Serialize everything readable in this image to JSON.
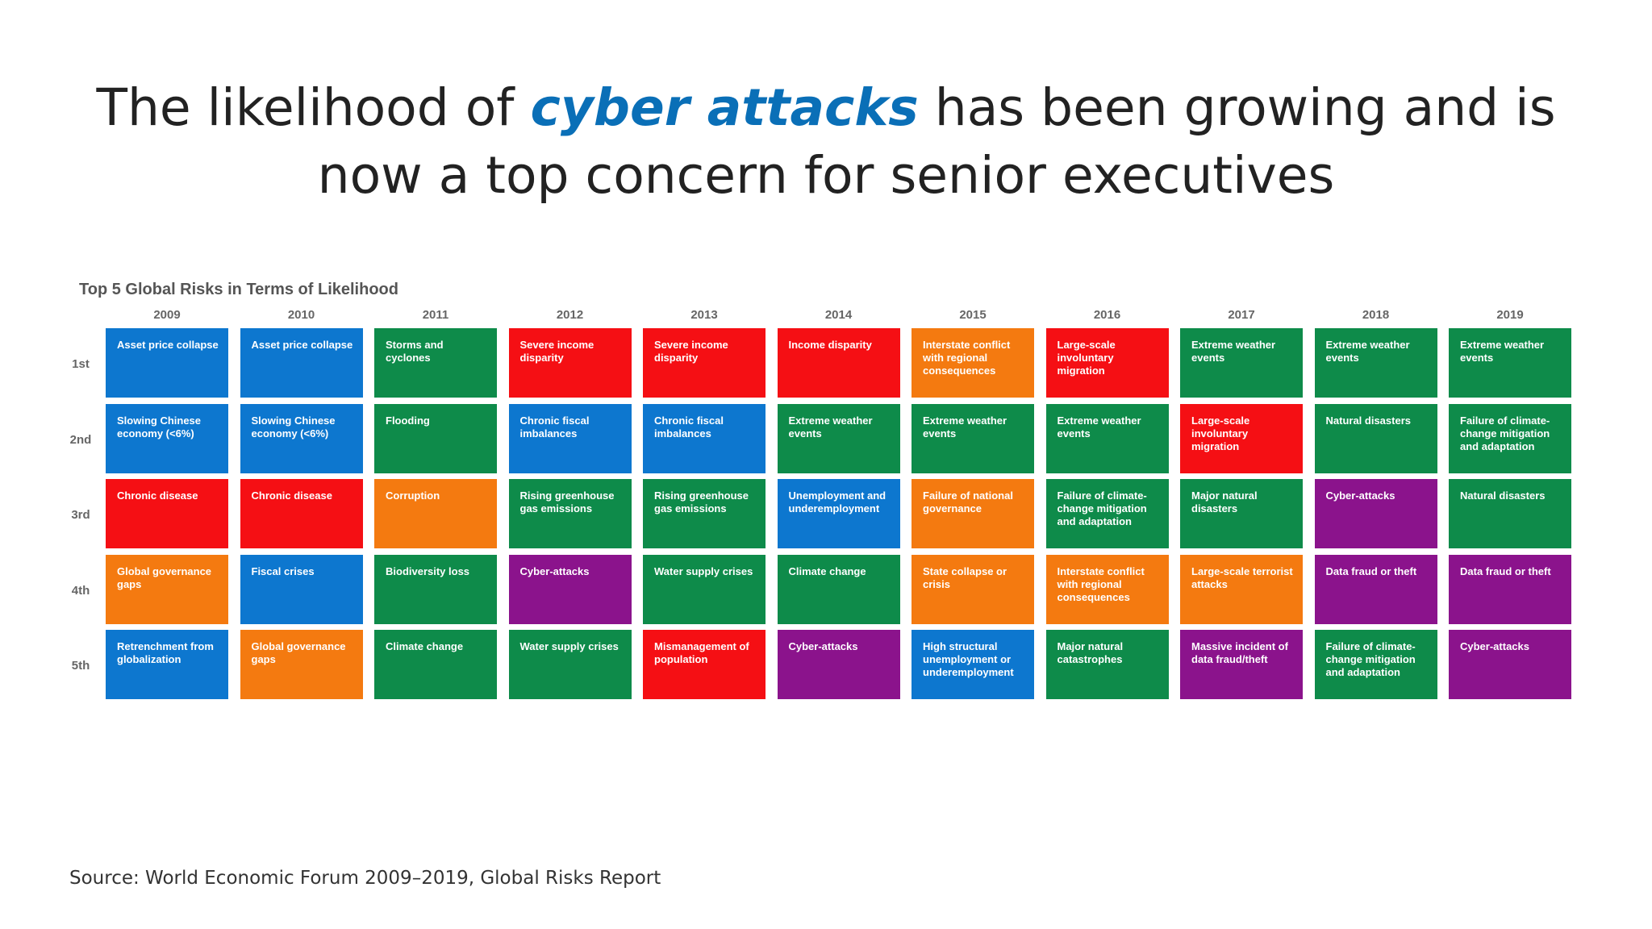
{
  "headline": {
    "part1": "The likelihood of ",
    "highlight": "cyber attacks",
    "part2": " has been growing and is",
    "line2": "now a top concern for senior executives"
  },
  "source": "Source: World Economic Forum 2009–2019, Global Risks Report",
  "colors": {
    "blue": "#0d77cf",
    "green": "#0e8b4a",
    "red": "#f50f14",
    "orange": "#f47a10",
    "purple": "#8b138c"
  },
  "chart_data": {
    "type": "table",
    "title": "Top 5 Global Risks in Terms of Likelihood",
    "years": [
      "2009",
      "2010",
      "2011",
      "2012",
      "2013",
      "2014",
      "2015",
      "2016",
      "2017",
      "2018",
      "2019"
    ],
    "ranks": [
      "1st",
      "2nd",
      "3rd",
      "4th",
      "5th"
    ],
    "columns": [
      [
        {
          "text": "Asset price collapse",
          "color": "blue"
        },
        {
          "text": "Slowing Chinese economy (<6%)",
          "color": "blue"
        },
        {
          "text": "Chronic disease",
          "color": "red"
        },
        {
          "text": "Global governance gaps",
          "color": "orange"
        },
        {
          "text": "Retrenchment from globalization",
          "color": "blue"
        }
      ],
      [
        {
          "text": "Asset price collapse",
          "color": "blue"
        },
        {
          "text": "Slowing Chinese economy (<6%)",
          "color": "blue"
        },
        {
          "text": "Chronic disease",
          "color": "red"
        },
        {
          "text": "Fiscal crises",
          "color": "blue"
        },
        {
          "text": "Global governance gaps",
          "color": "orange"
        }
      ],
      [
        {
          "text": "Storms and cyclones",
          "color": "green"
        },
        {
          "text": "Flooding",
          "color": "green"
        },
        {
          "text": "Corruption",
          "color": "orange"
        },
        {
          "text": "Biodiversity loss",
          "color": "green"
        },
        {
          "text": "Climate change",
          "color": "green"
        }
      ],
      [
        {
          "text": "Severe income disparity",
          "color": "red"
        },
        {
          "text": "Chronic fiscal imbalances",
          "color": "blue"
        },
        {
          "text": "Rising greenhouse gas emissions",
          "color": "green"
        },
        {
          "text": "Cyber-attacks",
          "color": "purple"
        },
        {
          "text": "Water supply crises",
          "color": "green"
        }
      ],
      [
        {
          "text": "Severe income disparity",
          "color": "red"
        },
        {
          "text": "Chronic fiscal imbalances",
          "color": "blue"
        },
        {
          "text": "Rising greenhouse gas emissions",
          "color": "green"
        },
        {
          "text": "Water supply crises",
          "color": "green"
        },
        {
          "text": "Mismanagement of population",
          "color": "red"
        }
      ],
      [
        {
          "text": "Income disparity",
          "color": "red"
        },
        {
          "text": "Extreme weather events",
          "color": "green"
        },
        {
          "text": "Unemployment and underemployment",
          "color": "blue"
        },
        {
          "text": "Climate change",
          "color": "green"
        },
        {
          "text": "Cyber-attacks",
          "color": "purple"
        }
      ],
      [
        {
          "text": "Interstate conflict with regional consequences",
          "color": "orange"
        },
        {
          "text": "Extreme weather events",
          "color": "green"
        },
        {
          "text": "Failure of national governance",
          "color": "orange"
        },
        {
          "text": "State collapse or crisis",
          "color": "orange"
        },
        {
          "text": "High structural unemployment or underemployment",
          "color": "blue"
        }
      ],
      [
        {
          "text": "Large-scale involuntary migration",
          "color": "red"
        },
        {
          "text": "Extreme weather events",
          "color": "green"
        },
        {
          "text": "Failure of climate-change mitigation and adaptation",
          "color": "green"
        },
        {
          "text": "Interstate conflict with regional consequences",
          "color": "orange"
        },
        {
          "text": "Major natural catastrophes",
          "color": "green"
        }
      ],
      [
        {
          "text": "Extreme weather events",
          "color": "green"
        },
        {
          "text": "Large-scale involuntary migration",
          "color": "red"
        },
        {
          "text": "Major natural disasters",
          "color": "green"
        },
        {
          "text": "Large-scale terrorist attacks",
          "color": "orange"
        },
        {
          "text": "Massive incident of data fraud/theft",
          "color": "purple"
        }
      ],
      [
        {
          "text": "Extreme weather events",
          "color": "green"
        },
        {
          "text": "Natural disasters",
          "color": "green"
        },
        {
          "text": "Cyber-attacks",
          "color": "purple"
        },
        {
          "text": "Data fraud or theft",
          "color": "purple"
        },
        {
          "text": "Failure of climate-change mitigation and adaptation",
          "color": "green"
        }
      ],
      [
        {
          "text": "Extreme weather events",
          "color": "green"
        },
        {
          "text": "Failure of climate-change mitigation and adaptation",
          "color": "green"
        },
        {
          "text": "Natural disasters",
          "color": "green"
        },
        {
          "text": "Data fraud or theft",
          "color": "purple"
        },
        {
          "text": "Cyber-attacks",
          "color": "purple"
        }
      ]
    ]
  }
}
